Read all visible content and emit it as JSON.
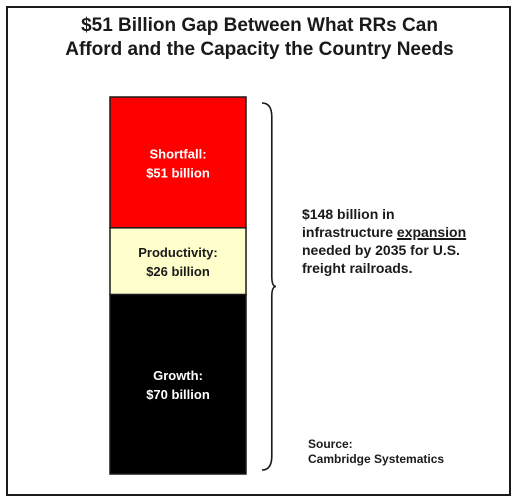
{
  "title": {
    "line1": "$51 Billion Gap Between What RRs Can",
    "line2": "Afford and the Capacity the Country Needs"
  },
  "annotation": {
    "before": "$148 billion in infrastructure ",
    "emphasis": "expansion",
    "after": " needed by 2035 for U.S. freight railroads."
  },
  "source": {
    "line1": "Source:",
    "line2": "Cambridge Systematics"
  },
  "colors": {
    "shortfall": "#ff0000",
    "productivity": "#ffffcc",
    "growth": "#000000",
    "text_dark": "#1a1a1a"
  },
  "chart_data": {
    "type": "bar",
    "stacked": true,
    "total": 148,
    "unit": "billion",
    "segments": [
      {
        "name": "Growth",
        "value": 70,
        "label_line1": "Growth:",
        "label_line2": "$70 billion",
        "color": "#000000",
        "text_color": "#ffffff"
      },
      {
        "name": "Productivity",
        "value": 26,
        "label_line1": "Productivity:",
        "label_line2": "$26 billion",
        "color": "#ffffcc",
        "text_color": "#1a1a1a"
      },
      {
        "name": "Shortfall",
        "value": 51,
        "label_line1": "Shortfall:",
        "label_line2": "$51 billion",
        "color": "#ff0000",
        "text_color": "#ffffff"
      }
    ]
  }
}
